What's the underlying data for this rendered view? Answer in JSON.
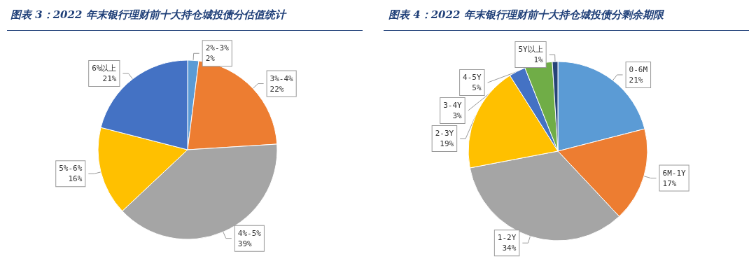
{
  "chart_data": [
    {
      "type": "pie",
      "title": "图表 3：2022 年末银行理财前十大持仓城投债分估值统计",
      "categories": [
        "2%-3%",
        "3%-4%",
        "4%-5%",
        "5%-6%",
        "6%以上"
      ],
      "values": [
        2,
        22,
        39,
        16,
        21
      ],
      "value_labels": [
        "2%",
        "22%",
        "39%",
        "16%",
        "21%"
      ],
      "colors": [
        "#5b9bd5",
        "#ed7d31",
        "#a5a5a5",
        "#ffc000",
        "#4472c4"
      ],
      "legend": false
    },
    {
      "type": "pie",
      "title": "图表 4：2022 年末银行理财前十大持仓城投债分剩余期限",
      "categories": [
        "0-6M",
        "6M-1Y",
        "1-2Y",
        "2-3Y",
        "3-4Y",
        "4-5Y",
        "5Y以上"
      ],
      "values": [
        21,
        17,
        34,
        19,
        3,
        5,
        1
      ],
      "value_labels": [
        "21%",
        "17%",
        "34%",
        "19%",
        "3%",
        "5%",
        "1%"
      ],
      "colors": [
        "#5b9bd5",
        "#ed7d31",
        "#a5a5a5",
        "#ffc000",
        "#4472c4",
        "#70ad47",
        "#264478"
      ],
      "legend": false
    }
  ]
}
